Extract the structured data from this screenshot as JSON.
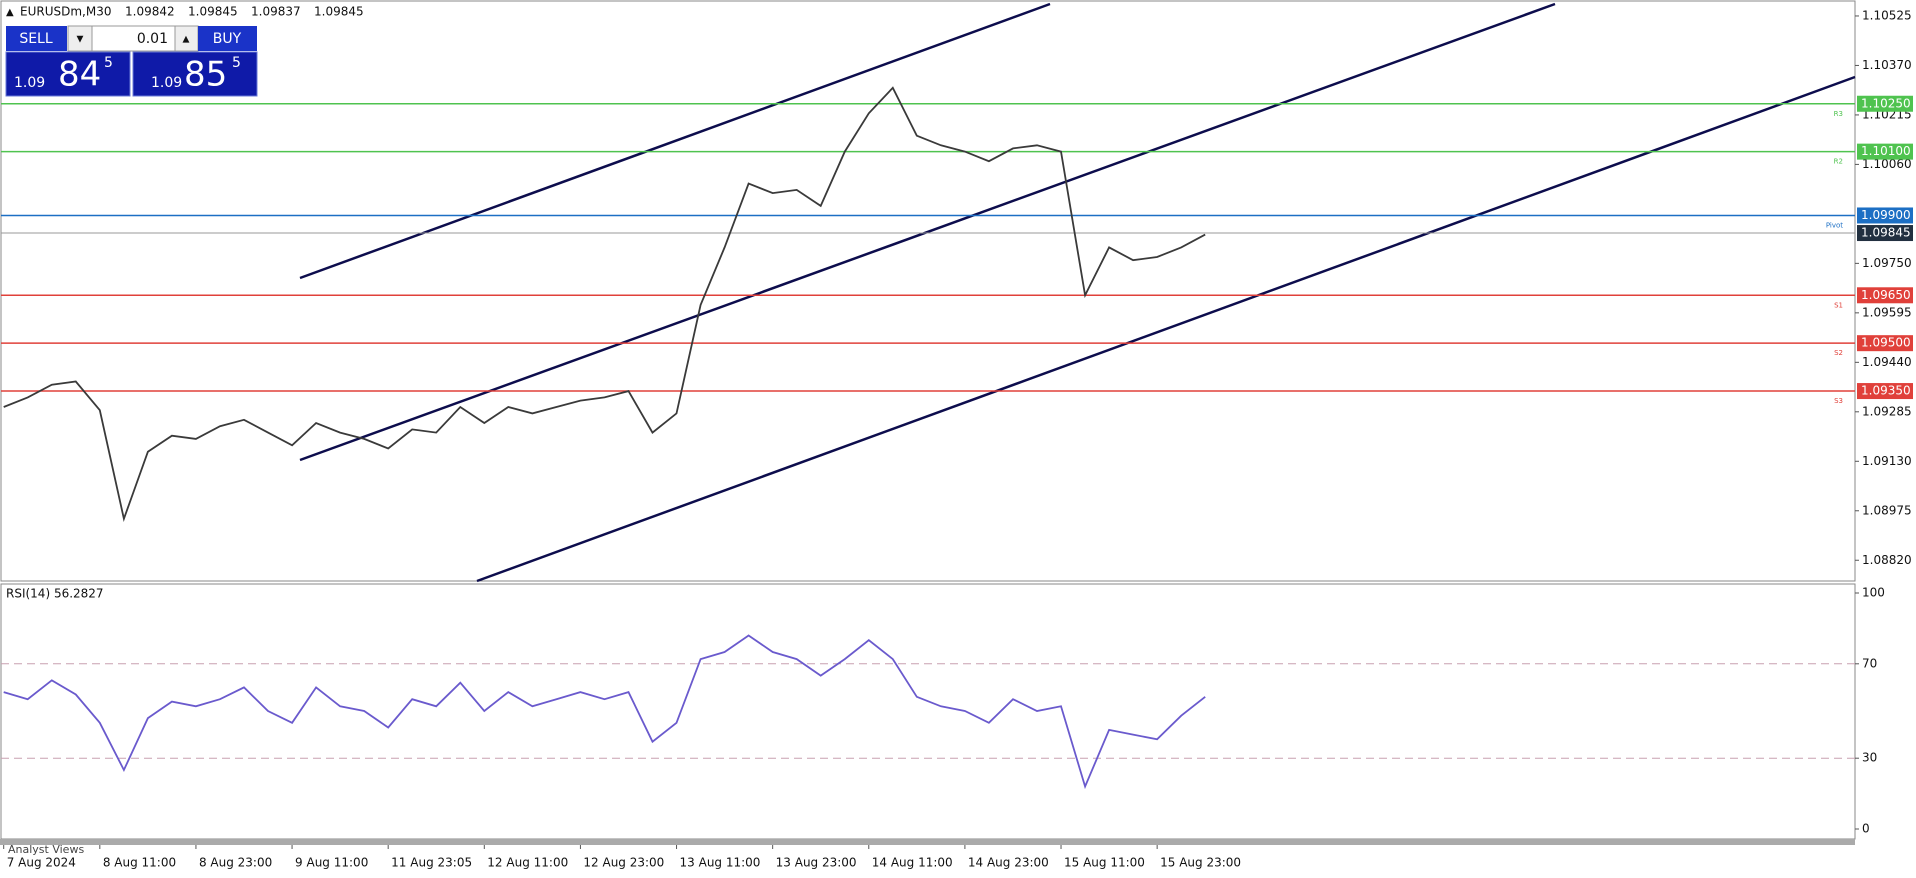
{
  "header": {
    "symbol": "EURUSDm,M30",
    "quotes": [
      "1.09842",
      "1.09845",
      "1.09837",
      "1.09845"
    ]
  },
  "trade_panel": {
    "sell": "SELL",
    "volume": "0.01",
    "buy": "BUY",
    "bid": {
      "big": "1.09",
      "pips": "84",
      "frac": "5"
    },
    "ask": {
      "big": "1.09",
      "pips": "85",
      "frac": "5"
    }
  },
  "chart": {
    "price_ylim": [
      1.08755,
      1.10575
    ],
    "price_yticks": [
      {
        "value": 1.10525,
        "label": "1.10525"
      },
      {
        "value": 1.1037,
        "label": "1.10370"
      },
      {
        "value": 1.10215,
        "label": "1.10215"
      },
      {
        "value": 1.1006,
        "label": "1.10060"
      },
      {
        "value": 1.0975,
        "label": "1.09750"
      },
      {
        "value": 1.09595,
        "label": "1.09595"
      },
      {
        "value": 1.0944,
        "label": "1.09440"
      },
      {
        "value": 1.09285,
        "label": "1.09285"
      },
      {
        "value": 1.0913,
        "label": "1.09130"
      },
      {
        "value": 1.08975,
        "label": "1.08975"
      },
      {
        "value": 1.0882,
        "label": "1.08820"
      }
    ],
    "levels": [
      {
        "name": "R3",
        "color": "#4fc34f",
        "price": {
          "value": 1.1025,
          "label": "1.10250"
        }
      },
      {
        "name": "R2",
        "color": "#4fc34f",
        "price": {
          "value": 1.101,
          "label": "1.10100"
        }
      },
      {
        "name": "Pivot",
        "color": "#1c6fc4",
        "price": {
          "value": 1.099,
          "label": "1.09900"
        }
      },
      {
        "name": "S1",
        "color": "#e0403a",
        "price": {
          "value": 1.0965,
          "label": "1.09650"
        }
      },
      {
        "name": "S2",
        "color": "#e0403a",
        "price": {
          "value": 1.095,
          "label": "1.09500"
        }
      },
      {
        "name": "S3",
        "color": "#e0403a",
        "price": {
          "value": 1.0935,
          "label": "1.09350"
        }
      }
    ],
    "current": {
      "value": 1.09845,
      "label": "1.09845"
    },
    "close": [
      1.093,
      1.0933,
      1.0937,
      1.0938,
      1.0929,
      1.0895,
      1.0916,
      1.0921,
      1.092,
      1.0924,
      1.0926,
      1.0922,
      1.0918,
      1.0925,
      1.0922,
      1.092,
      1.0917,
      1.0923,
      1.0922,
      1.093,
      1.0925,
      1.093,
      1.0928,
      1.093,
      1.0932,
      1.0933,
      1.0935,
      1.0922,
      1.0928,
      1.0962,
      1.098,
      1.1,
      1.0997,
      1.0998,
      1.0993,
      1.101,
      1.1022,
      1.103,
      1.1015,
      1.1012,
      1.101,
      1.1007,
      1.1011,
      1.1012,
      1.101,
      1.0965,
      1.098,
      1.0976,
      1.0977,
      1.098,
      1.0984
    ],
    "price_color": "#3a3a3a",
    "rsi_title": "RSI(14) 56.2827",
    "rsi_ylim": [
      0,
      100
    ],
    "rsi_yticks": [
      100,
      70,
      30,
      0
    ],
    "rsi_levels": [
      70,
      30
    ],
    "rsi_color": "#6a5acd",
    "rsi": [
      58,
      55,
      63,
      57,
      45,
      25,
      47,
      54,
      52,
      55,
      60,
      50,
      45,
      60,
      52,
      50,
      43,
      55,
      52,
      62,
      50,
      58,
      52,
      55,
      58,
      55,
      58,
      37,
      45,
      72,
      75,
      82,
      75,
      72,
      65,
      72,
      80,
      72,
      56,
      52,
      50,
      45,
      55,
      50,
      52,
      18,
      42,
      40,
      38,
      48,
      56
    ],
    "time_labels": [
      "7 Aug 2024",
      "8 Aug 11:00",
      "8 Aug 23:00",
      "9 Aug 11:00",
      "11 Aug 23:05",
      "12 Aug 11:00",
      "12 Aug 23:00",
      "13 Aug 11:00",
      "13 Aug 23:00",
      "14 Aug 11:00",
      "14 Aug 23:00",
      "15 Aug 11:00",
      "15 Aug 23:00"
    ],
    "analyst_tab": "Analyst Views"
  }
}
